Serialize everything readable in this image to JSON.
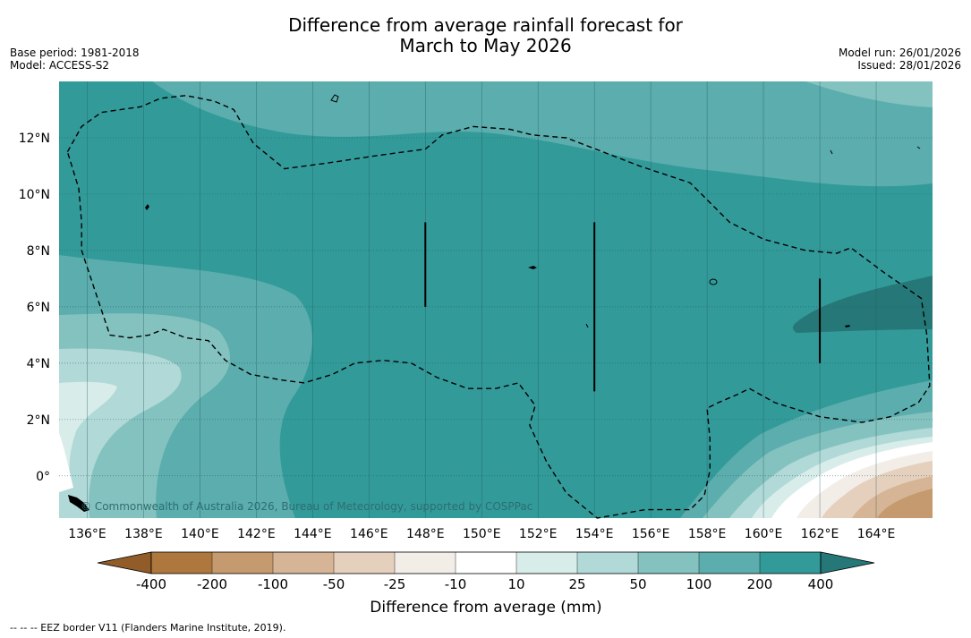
{
  "title": {
    "line1": "Difference from average rainfall forecast for",
    "line2": "March to May 2026"
  },
  "meta": {
    "base_period": "Base period: 1981-2018",
    "model": "Model: ACCESS-S2",
    "model_run": "Model run: 26/01/2026",
    "issued": "Issued: 28/01/2026"
  },
  "map": {
    "lon_range": [
      135,
      166
    ],
    "lat_range": [
      -1.5,
      14
    ],
    "lon_ticks": [
      136,
      138,
      140,
      142,
      144,
      146,
      148,
      150,
      152,
      154,
      156,
      158,
      160,
      162,
      164
    ],
    "lon_tick_labels": [
      "136°E",
      "138°E",
      "140°E",
      "142°E",
      "144°E",
      "146°E",
      "148°E",
      "150°E",
      "152°E",
      "154°E",
      "156°E",
      "158°E",
      "160°E",
      "162°E",
      "164°E"
    ],
    "lat_ticks": [
      0,
      2,
      4,
      6,
      8,
      10,
      12
    ],
    "lat_tick_labels": [
      "0°",
      "2°N",
      "4°N",
      "6°N",
      "8°N",
      "10°N",
      "12°N"
    ],
    "copyright": "© Commonwealth of Australia 2026, Bureau of Meteorology, supported by COSPPac",
    "eez_vertex_lines": [
      {
        "lon": 148,
        "lat_from": 6,
        "lat_to": 9
      },
      {
        "lon": 154,
        "lat_from": 3,
        "lat_to": 9
      },
      {
        "lon": 162,
        "lat_from": 4,
        "lat_to": 7
      }
    ],
    "eez_border": [
      [
        135.3,
        11.5
      ],
      [
        135.8,
        12.4
      ],
      [
        136.5,
        12.9
      ],
      [
        137.9,
        13.1
      ],
      [
        138.6,
        13.4
      ],
      [
        139.5,
        13.5
      ],
      [
        140.5,
        13.3
      ],
      [
        141.2,
        13
      ],
      [
        141.9,
        11.8
      ],
      [
        143,
        10.9
      ],
      [
        144.5,
        11.1
      ],
      [
        146.5,
        11.4
      ],
      [
        148,
        11.6
      ],
      [
        148.6,
        12.1
      ],
      [
        149.7,
        12.4
      ],
      [
        151,
        12.3
      ],
      [
        151.8,
        12.1
      ],
      [
        153,
        12
      ],
      [
        154.3,
        11.5
      ],
      [
        155.6,
        11
      ],
      [
        157.4,
        10.4
      ],
      [
        158.8,
        9
      ],
      [
        160,
        8.4
      ],
      [
        161.5,
        8
      ],
      [
        162.6,
        7.9
      ],
      [
        163.1,
        8.1
      ],
      [
        164.3,
        7.2
      ],
      [
        165.6,
        6.3
      ],
      [
        165.8,
        5
      ],
      [
        165.9,
        3.2
      ],
      [
        165.5,
        2.6
      ],
      [
        164.5,
        2.1
      ],
      [
        163.5,
        1.9
      ],
      [
        162,
        2.1
      ],
      [
        160.4,
        2.6
      ],
      [
        159.5,
        3.1
      ],
      [
        159.1,
        2.9
      ],
      [
        158.4,
        2.6
      ],
      [
        158,
        2.4
      ],
      [
        158.1,
        1.3
      ],
      [
        158.1,
        0.2
      ],
      [
        157.9,
        -0.7
      ],
      [
        157.4,
        -1.2
      ],
      [
        155.8,
        -1.2
      ],
      [
        154.1,
        -1.5
      ],
      [
        153,
        -0.6
      ],
      [
        152.3,
        0.5
      ],
      [
        151.7,
        1.8
      ],
      [
        151.9,
        2.5
      ],
      [
        151.3,
        3.3
      ],
      [
        150.5,
        3.1
      ],
      [
        149.5,
        3.1
      ],
      [
        148.4,
        3.5
      ],
      [
        147.5,
        4
      ],
      [
        146.5,
        4.1
      ],
      [
        145.5,
        4
      ],
      [
        144.7,
        3.6
      ],
      [
        143.7,
        3.3
      ],
      [
        142.9,
        3.4
      ],
      [
        141.8,
        3.6
      ],
      [
        140.9,
        4.1
      ],
      [
        140.3,
        4.8
      ],
      [
        139.5,
        4.9
      ],
      [
        138.7,
        5.2
      ],
      [
        138.2,
        5
      ],
      [
        137.5,
        4.9
      ],
      [
        136.8,
        5
      ],
      [
        136.5,
        5.9
      ],
      [
        136.1,
        7.1
      ],
      [
        135.8,
        8
      ],
      [
        135.8,
        9
      ],
      [
        135.7,
        10.2
      ],
      [
        135.3,
        11.5
      ]
    ]
  },
  "colorbar": {
    "tick_labels": [
      "-400",
      "-200",
      "-100",
      "-50",
      "-25",
      "-10",
      "10",
      "25",
      "50",
      "100",
      "200",
      "400"
    ],
    "colors": {
      "below_min": "#915c28",
      "bins": [
        "#ad773e",
        "#c59a6e",
        "#d6b596",
        "#e5d0bd",
        "#f3ede8",
        "#ffffff",
        "#d8ecea",
        "#b0d9d7",
        "#84c2c0",
        "#5cadad",
        "#339a9a"
      ],
      "above_max": "#267878"
    },
    "label": "Difference from average (mm)"
  },
  "footnote": "--  --  -- EEZ border V11 (Flanders Marine Institute, 2019)."
}
